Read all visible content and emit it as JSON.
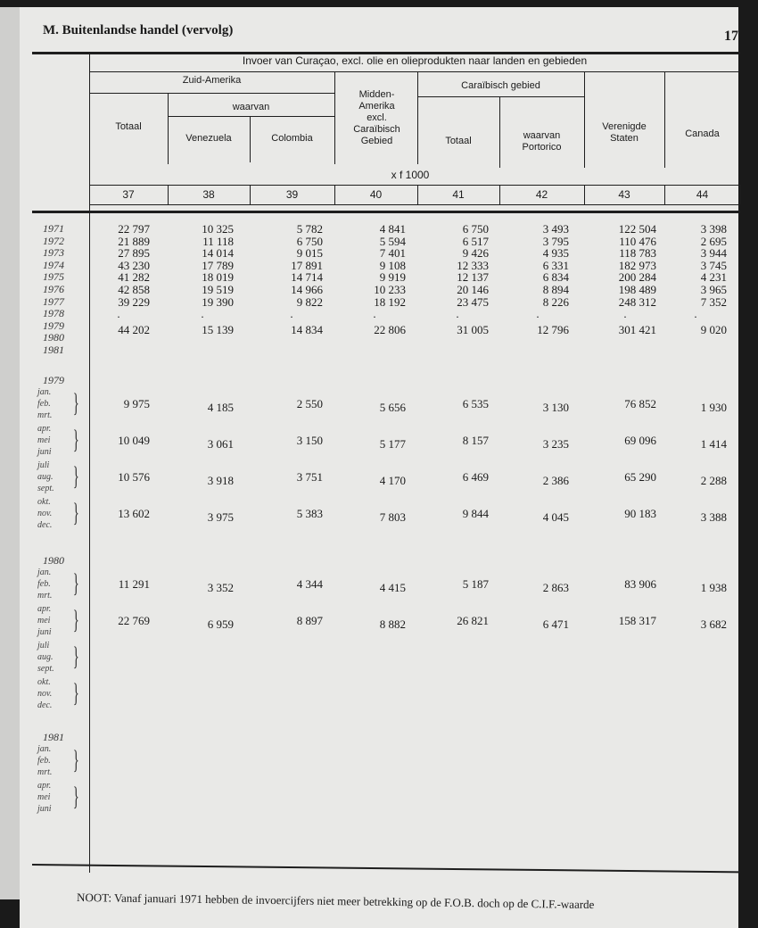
{
  "header": {
    "section": "M.  Buitenlandse handel (vervolg)",
    "page_number": "17"
  },
  "table": {
    "title": "Invoer van Curaçao, excl. olie en olieprodukten naar landen en gebieden",
    "groups": {
      "zuid_amerika": "Zuid-Amerika",
      "waarvan": "waarvan",
      "midden_amerika": "Midden-Amerika excl. Caraïbisch Gebied",
      "caraibisch": "Caraïbisch gebied"
    },
    "columns": [
      "Totaal",
      "Venezuela",
      "Colombia",
      "",
      "Totaal",
      "waarvan Portorico",
      "Verenigde Staten",
      "Canada"
    ],
    "unit": "x f 1000",
    "column_numbers": [
      "37",
      "38",
      "39",
      "40",
      "41",
      "42",
      "43",
      "44"
    ],
    "years": [
      {
        "label": "1971",
        "values": [
          "22 797",
          "10 325",
          "5 782",
          "4 841",
          "6 750",
          "3 493",
          "122 504",
          "3 398"
        ]
      },
      {
        "label": "1972",
        "values": [
          "21 889",
          "11 118",
          "6 750",
          "5 594",
          "6 517",
          "3 795",
          "110 476",
          "2 695"
        ]
      },
      {
        "label": "1973",
        "values": [
          "27 895",
          "14 014",
          "9 015",
          "7 401",
          "9 426",
          "4 935",
          "118 783",
          "3 944"
        ]
      },
      {
        "label": "1974",
        "values": [
          "43 230",
          "17 789",
          "17 891",
          "9 108",
          "12 333",
          "6 331",
          "182 973",
          "3 745"
        ]
      },
      {
        "label": "1975",
        "values": [
          "41 282",
          "18 019",
          "14 714",
          "9 919",
          "12 137",
          "6 834",
          "200 284",
          "4 231"
        ]
      },
      {
        "label": "1976",
        "values": [
          "42 858",
          "19 519",
          "14 966",
          "10 233",
          "20 146",
          "8 894",
          "198 489",
          "3 965"
        ]
      },
      {
        "label": "1977",
        "values": [
          "39 229",
          "19 390",
          "9 822",
          "18 192",
          "23 475",
          "8 226",
          "248 312",
          "7 352"
        ]
      },
      {
        "label": "1978",
        "values": [
          ".",
          ".",
          ".",
          ".",
          ".",
          ".",
          ".",
          "."
        ]
      },
      {
        "label": "1979",
        "values": [
          "44 202",
          "15 139",
          "14 834",
          "22 806",
          "31 005",
          "12 796",
          "301 421",
          "9 020"
        ]
      },
      {
        "label": "1980",
        "values": []
      },
      {
        "label": "1981",
        "values": []
      }
    ],
    "months": {
      "1979": {
        "label": "1979",
        "quarters": [
          {
            "months": [
              "jan.",
              "feb.",
              "mrt."
            ],
            "values": [
              "9 975",
              "4 185",
              "2 550",
              "5 656",
              "6 535",
              "3 130",
              "76 852",
              "1 930"
            ]
          },
          {
            "months": [
              "apr.",
              "mei",
              "juni"
            ],
            "values": [
              "10 049",
              "3 061",
              "3 150",
              "5 177",
              "8 157",
              "3 235",
              "69 096",
              "1 414"
            ]
          },
          {
            "months": [
              "juli",
              "aug.",
              "sept."
            ],
            "values": [
              "10 576",
              "3 918",
              "3 751",
              "4 170",
              "6 469",
              "2 386",
              "65 290",
              "2 288"
            ]
          },
          {
            "months": [
              "okt.",
              "nov.",
              "dec."
            ],
            "values": [
              "13 602",
              "3 975",
              "5 383",
              "7 803",
              "9 844",
              "4 045",
              "90 183",
              "3 388"
            ]
          }
        ]
      },
      "1980": {
        "label": "1980",
        "quarters": [
          {
            "months": [
              "jan.",
              "feb.",
              "mrt."
            ],
            "values": [
              "11 291",
              "3 352",
              "4 344",
              "4 415",
              "5 187",
              "2 863",
              "83 906",
              "1 938"
            ]
          },
          {
            "months": [
              "apr.",
              "mei",
              "juni"
            ],
            "values": [
              "22 769",
              "6 959",
              "8 897",
              "8 882",
              "26 821",
              "6 471",
              "158 317",
              "3 682"
            ]
          },
          {
            "months": [
              "juli",
              "aug.",
              "sept."
            ],
            "values": []
          },
          {
            "months": [
              "okt.",
              "nov.",
              "dec."
            ],
            "values": []
          }
        ]
      },
      "1981": {
        "label": "1981",
        "quarters": [
          {
            "months": [
              "jan.",
              "feb.",
              "mrt."
            ],
            "values": []
          },
          {
            "months": [
              "apr.",
              "mei",
              "juni"
            ],
            "values": []
          }
        ]
      }
    }
  },
  "footer": {
    "note": "NOOT:  Vanaf januari 1971 hebben de invoercijfers niet meer betrekking op de F.O.B. doch op de C.I.F.-waarde"
  }
}
